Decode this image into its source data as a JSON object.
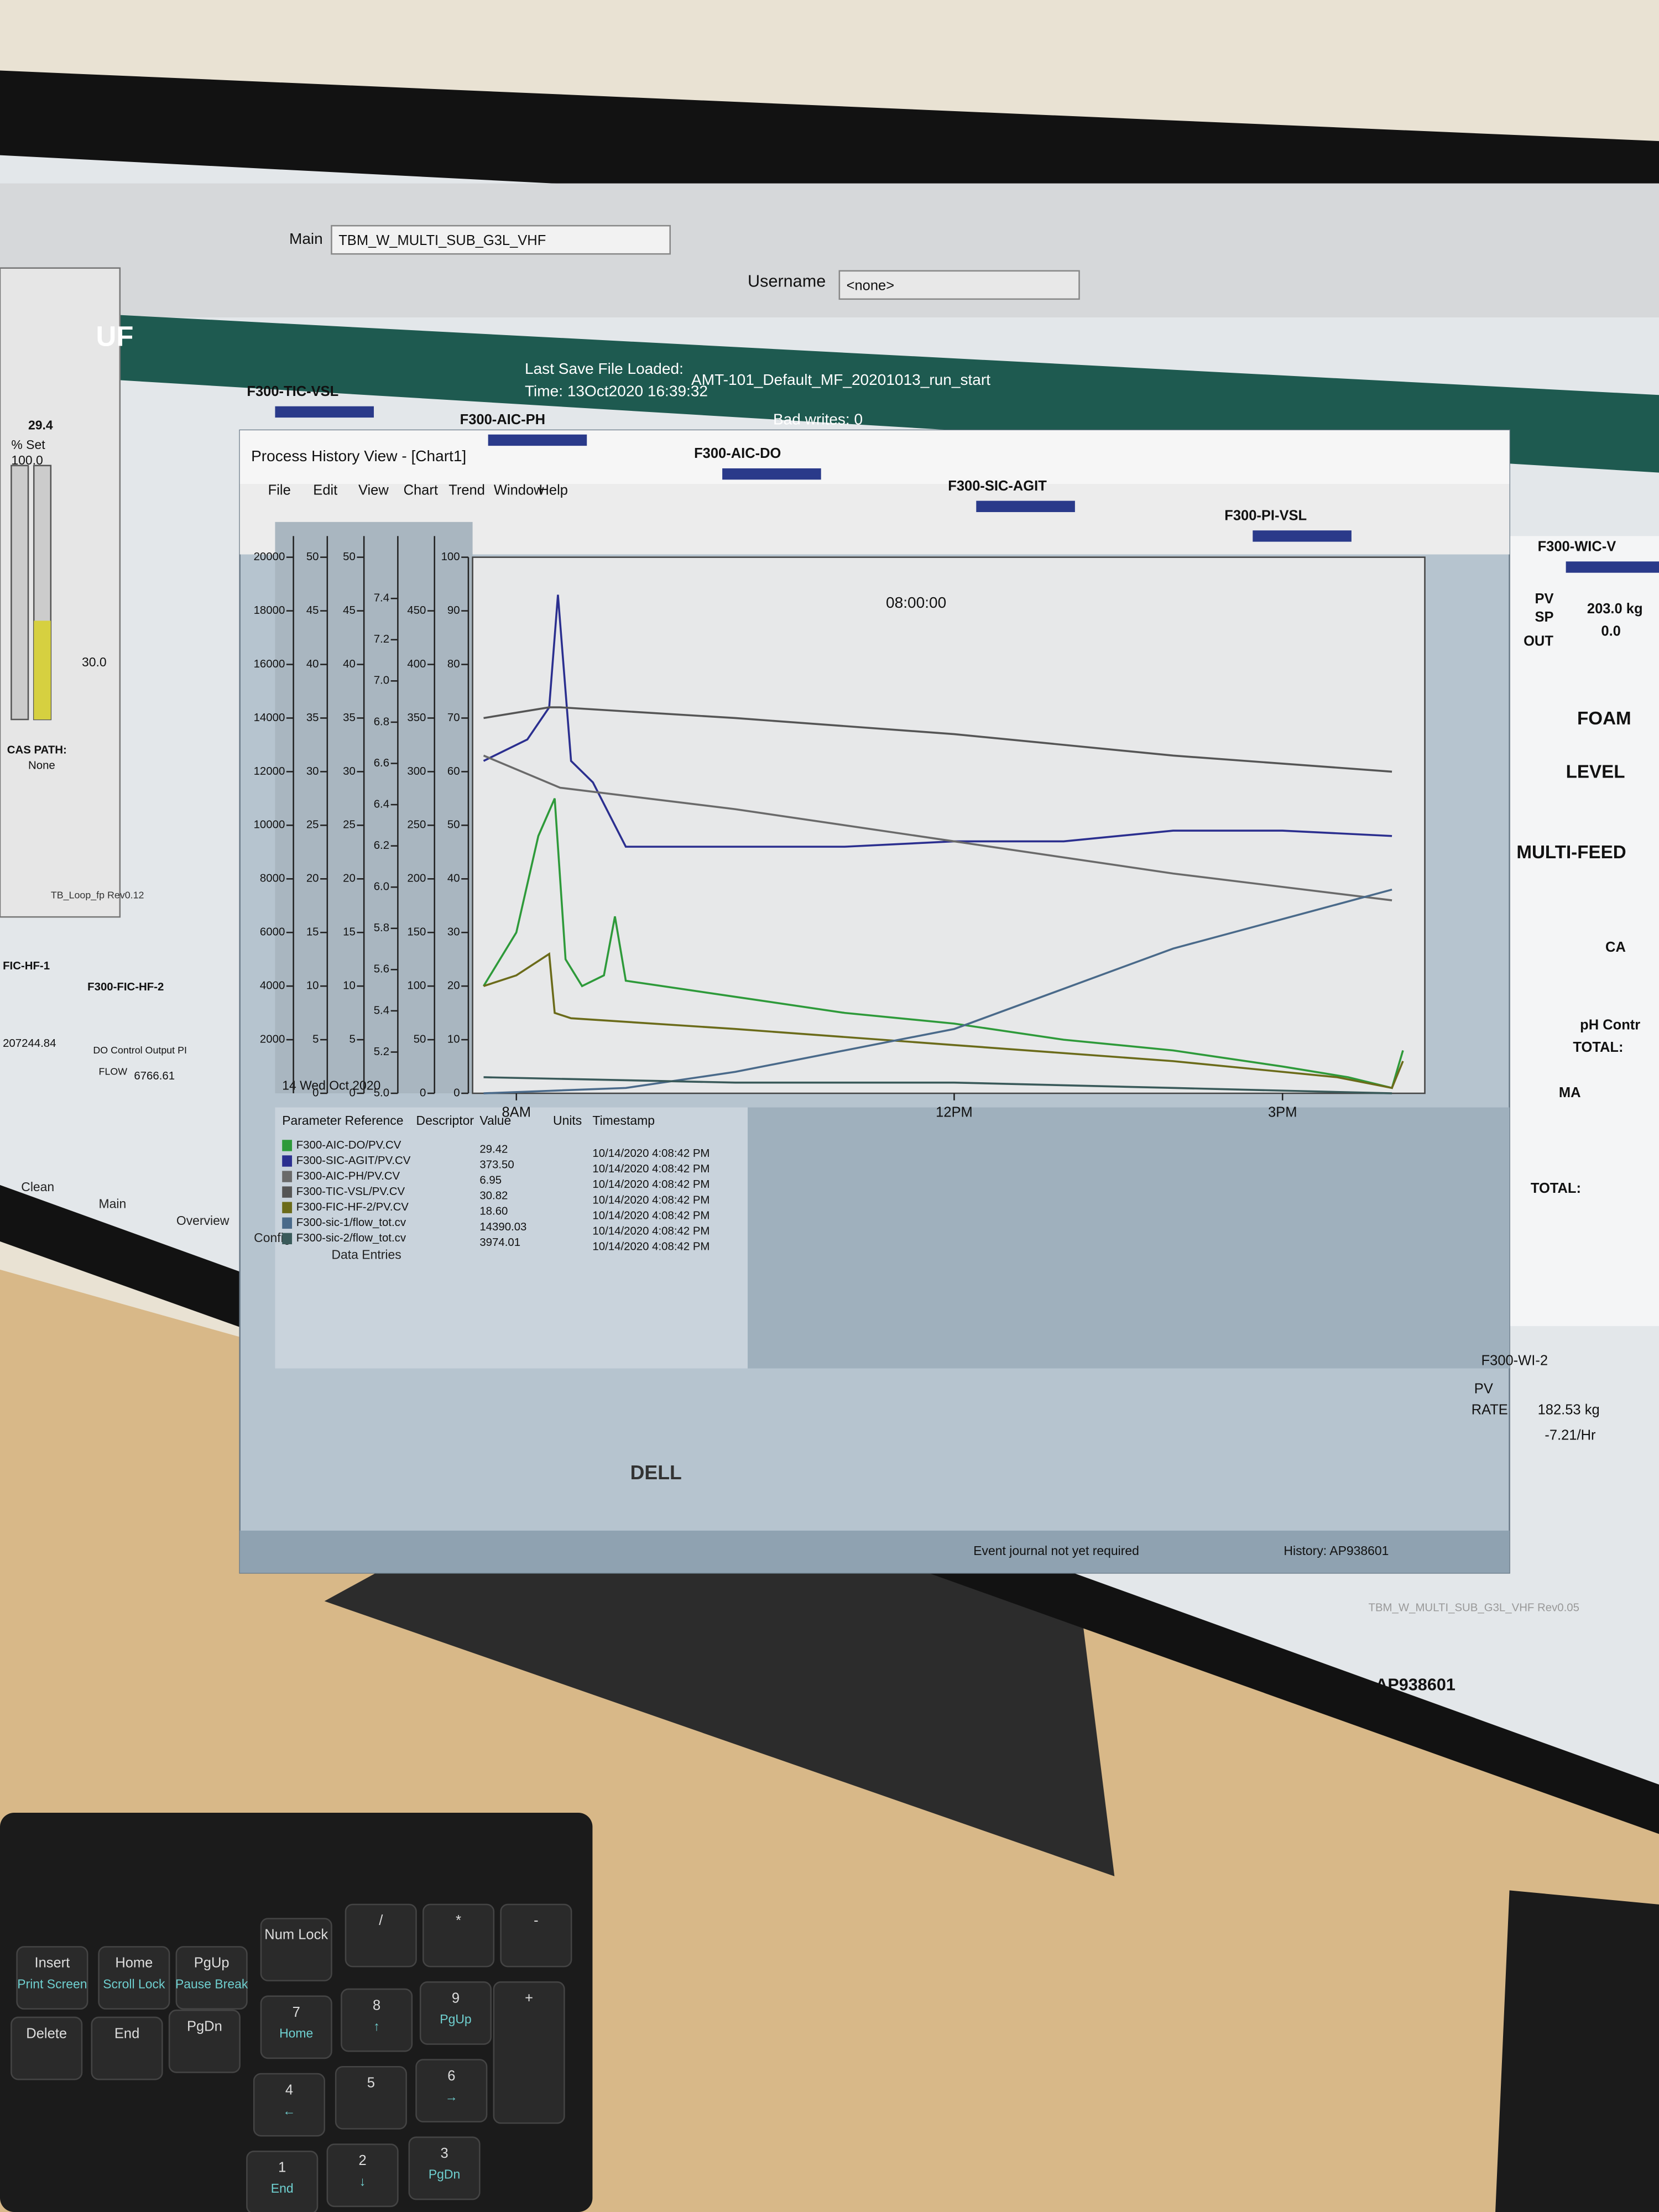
{
  "toolbar": {
    "main_label": "Main",
    "main_value": "TBM_W_MULTI_SUB_G3L_VHF",
    "username_label": "Username",
    "username_value": "<none>"
  },
  "banner": {
    "title": "UF",
    "last_save": "Last Save File Loaded:",
    "file": "AMT-101_Default_MF_20201013_run_start",
    "time": "Time: 13Oct2020 16:39:32",
    "bad_writes": "Bad writes: 0"
  },
  "tags": [
    "F300-TIC-VSL",
    "F300-AIC-PH",
    "F300-AIC-DO",
    "F300-SIC-AGIT",
    "F300-PI-VSL",
    "F300-WIC-V"
  ],
  "left_popup": {
    "pv": "29.4",
    "set_label": "% Set",
    "set_value": "100.0",
    "sp": "30.0",
    "cas_label": "CAS PATH:",
    "cas_value": "None",
    "footer": "TB_Loop_fp Rev0.12"
  },
  "left_faceplates": {
    "fic1": "FIC-HF-1",
    "fic2": "F300-FIC-HF-2",
    "fic2_desc": "DO Control Output PI",
    "flow_label": "FLOW",
    "flow_value": "6766.61",
    "total": "207244.84"
  },
  "right_panel": {
    "wic_pv_label": "PV",
    "wic_pv": "203.0 kg",
    "wic_sp_label": "SP",
    "wic_sp": "0.0",
    "wic_out": "OUT",
    "foam": "FOAM",
    "level": "LEVEL",
    "multi_feed": "MULTI-FEED",
    "ca": "CA",
    "ma": "MA",
    "ph_control": "pH Contr",
    "total": "TOTAL:",
    "wi_tag": "F300-WI-2",
    "wi_pv_label": "PV",
    "wi_pv": "182.53 kg",
    "wi_rate_label": "RATE",
    "wi_rate": "-7.21/Hr"
  },
  "window": {
    "title": "Process History View - [Chart1]",
    "menu": [
      "File",
      "Edit",
      "View",
      "Chart",
      "Trend",
      "Window",
      "Help"
    ],
    "time_box": "08:00:00",
    "date": "14 Wed Oct 2020"
  },
  "table": {
    "headers": [
      "Parameter Reference",
      "Descriptor",
      "Value",
      "Units",
      "Timestamp"
    ],
    "rows": [
      [
        "29.42",
        "10/14/2020 4:08:42 PM"
      ],
      [
        "373.50",
        "10/14/2020 4:08:42 PM"
      ],
      [
        "6.95",
        "10/14/2020 4:08:42 PM"
      ],
      [
        "30.82",
        "10/14/2020 4:08:42 PM"
      ],
      [
        "18.60",
        "10/14/2020 4:08:42 PM"
      ],
      [
        "14390.03",
        "10/14/2020 4:08:42 PM"
      ],
      [
        "3974.01",
        "10/14/2020 4:08:42 PM"
      ]
    ]
  },
  "status": {
    "journal": "Event journal not yet required",
    "history": "History: AP938601"
  },
  "tabs": [
    "Clean",
    "Main",
    "Overview",
    "Config",
    "Data Entries"
  ],
  "footer": {
    "file": "TBM_W_MULTI_SUB_G3L_VHF Rev0.05",
    "node": "AP938601"
  },
  "monitor": {
    "brand": "DELL"
  },
  "keyboard": {
    "keys": [
      {
        "label": "Insert",
        "sub": "Print Screen"
      },
      {
        "label": "Home",
        "sub": "Scroll Lock"
      },
      {
        "label": "PgUp",
        "sub": "Pause Break"
      },
      {
        "label": "Num Lock"
      },
      {
        "label": "/"
      },
      {
        "label": "*"
      },
      {
        "label": "-"
      },
      {
        "label": "Delete"
      },
      {
        "label": "End"
      },
      {
        "label": "PgDn"
      },
      {
        "label": "7",
        "sub": "Home"
      },
      {
        "label": "8",
        "sub": "↑"
      },
      {
        "label": "9",
        "sub": "PgUp"
      },
      {
        "label": "+"
      },
      {
        "label": "4",
        "sub": "←"
      },
      {
        "label": "5"
      },
      {
        "label": "6",
        "sub": "→"
      },
      {
        "label": "1",
        "sub": "End"
      },
      {
        "label": "2",
        "sub": "↓"
      },
      {
        "label": "3",
        "sub": "PgDn"
      }
    ]
  },
  "chart_data": {
    "type": "line",
    "xlim": [
      7.6,
      16.3
    ],
    "xticks": [
      {
        "value": 8,
        "label": "8AM"
      },
      {
        "value": 12,
        "label": "12PM"
      },
      {
        "value": 15,
        "label": "3PM"
      }
    ],
    "ylim": [
      0,
      100
    ],
    "yticks": [
      0,
      10,
      20,
      30,
      40,
      50,
      60,
      70,
      80,
      90,
      100
    ],
    "grid": false,
    "extra_axes": [
      {
        "lim": [
          0,
          20000
        ],
        "ticks": [
          2000,
          4000,
          6000,
          8000,
          10000,
          12000,
          14000,
          16000,
          18000,
          20000
        ]
      },
      {
        "lim": [
          0,
          50
        ],
        "ticks": [
          0,
          5,
          10,
          15,
          20,
          25,
          30,
          35,
          40,
          45,
          50
        ]
      },
      {
        "lim": [
          0,
          50
        ],
        "ticks": [
          0,
          5,
          10,
          15,
          20,
          25,
          30,
          35,
          40,
          45,
          50
        ]
      },
      {
        "lim": [
          5.0,
          7.6
        ],
        "ticks": [
          {
            "value": 5,
            "label": "5.0"
          },
          5.2,
          5.4,
          5.6,
          5.8,
          {
            "value": 6,
            "label": "6.0"
          },
          6.2,
          6.4,
          6.6,
          6.8,
          {
            "value": 7,
            "label": "7.0"
          },
          7.2,
          7.4
        ]
      },
      {
        "lim": [
          0,
          500
        ],
        "ticks": [
          0,
          50,
          100,
          150,
          200,
          250,
          300,
          350,
          400,
          450
        ]
      }
    ],
    "series": [
      {
        "name": "F300-AIC-DO/PV.CV",
        "color": "#2e9a3a",
        "x": [
          7.7,
          8.0,
          8.2,
          8.35,
          8.45,
          8.6,
          8.8,
          8.9,
          9.0,
          10,
          11,
          12,
          13,
          14,
          15,
          15.6,
          16.0,
          16.1
        ],
        "values": [
          20,
          30,
          48,
          55,
          25,
          20,
          22,
          33,
          21,
          18,
          15,
          13,
          10,
          8,
          5,
          3,
          1,
          8
        ]
      },
      {
        "name": "F300-SIC-AGIT/PV.CV",
        "color": "#2b2f8f",
        "x": [
          7.7,
          8.1,
          8.3,
          8.38,
          8.5,
          8.7,
          9.0,
          10,
          11,
          12,
          13,
          14,
          15,
          16
        ],
        "values": [
          62,
          66,
          72,
          93,
          62,
          58,
          46,
          46,
          46,
          47,
          47,
          49,
          49,
          48
        ]
      },
      {
        "name": "F300-AIC-PH/PV.CV",
        "color": "#6a6a6a",
        "x": [
          7.7,
          8.4,
          10,
          12,
          14,
          16
        ],
        "values": [
          63,
          57,
          53,
          47,
          41,
          36
        ]
      },
      {
        "name": "F300-TIC-VSL/PV.CV",
        "color": "#555555",
        "x": [
          7.7,
          8.3,
          8.4,
          10,
          12,
          14,
          16
        ],
        "values": [
          70,
          72,
          72,
          70,
          67,
          63,
          60
        ]
      },
      {
        "name": "F300-FIC-HF-2/PV.CV",
        "color": "#6b6b1a",
        "x": [
          7.7,
          8.0,
          8.3,
          8.35,
          8.5,
          10,
          12,
          14,
          15.5,
          16,
          16.1
        ],
        "values": [
          20,
          22,
          26,
          15,
          14,
          12,
          9,
          6,
          3,
          1,
          6
        ]
      },
      {
        "name": "F300-sic-1/flow_tot.cv",
        "color": "#4a6a8a",
        "x": [
          7.7,
          9,
          10,
          12,
          14,
          16
        ],
        "values": [
          0,
          1,
          4,
          12,
          27,
          38
        ]
      },
      {
        "name": "F300-sic-2/flow_tot.cv",
        "color": "#3a5a5a",
        "x": [
          7.7,
          10,
          12,
          14,
          16
        ],
        "values": [
          3,
          2,
          2,
          1,
          0
        ]
      }
    ]
  }
}
